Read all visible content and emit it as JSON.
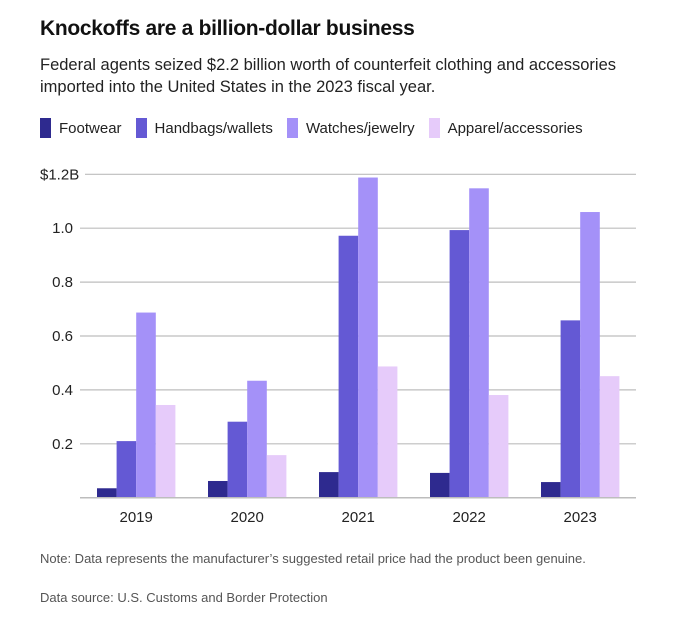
{
  "title": "Knockoffs are a billion-dollar business",
  "subtitle": "Federal agents seized $2.2 billion worth of counterfeit clothing and accessories imported into the United States in the 2023 fiscal year.",
  "note": "Note: Data represents the manufacturer’s suggested retail price had the product been genuine.",
  "source": "Data source: U.S. Customs and Border Protection",
  "chart_data": {
    "type": "bar",
    "categories": [
      "2019",
      "2020",
      "2021",
      "2022",
      "2023"
    ],
    "series": [
      {
        "name": "Footwear",
        "color": "#2e2a8f",
        "values": [
          0.035,
          0.062,
          0.095,
          0.092,
          0.058
        ]
      },
      {
        "name": "Handbags/wallets",
        "color": "#6459d4",
        "values": [
          0.21,
          0.282,
          0.972,
          0.993,
          0.658
        ]
      },
      {
        "name": "Watches/jewelry",
        "color": "#a491f8",
        "values": [
          0.687,
          0.434,
          1.188,
          1.148,
          1.06
        ]
      },
      {
        "name": "Apparel/accessories",
        "color": "#e6cbfa",
        "values": [
          0.344,
          0.158,
          0.487,
          0.381,
          0.451
        ]
      }
    ],
    "yticks": [
      {
        "value": 0.2,
        "label": "0.2"
      },
      {
        "value": 0.4,
        "label": "0.4"
      },
      {
        "value": 0.6,
        "label": "0.6"
      },
      {
        "value": 0.8,
        "label": "0.8"
      },
      {
        "value": 1.0,
        "label": "1.0"
      },
      {
        "value": 1.2,
        "label": "$1.2B"
      }
    ],
    "ylim": [
      0,
      1.2
    ],
    "unit": "billion USD",
    "grid": true,
    "legend_position": "top-left"
  }
}
